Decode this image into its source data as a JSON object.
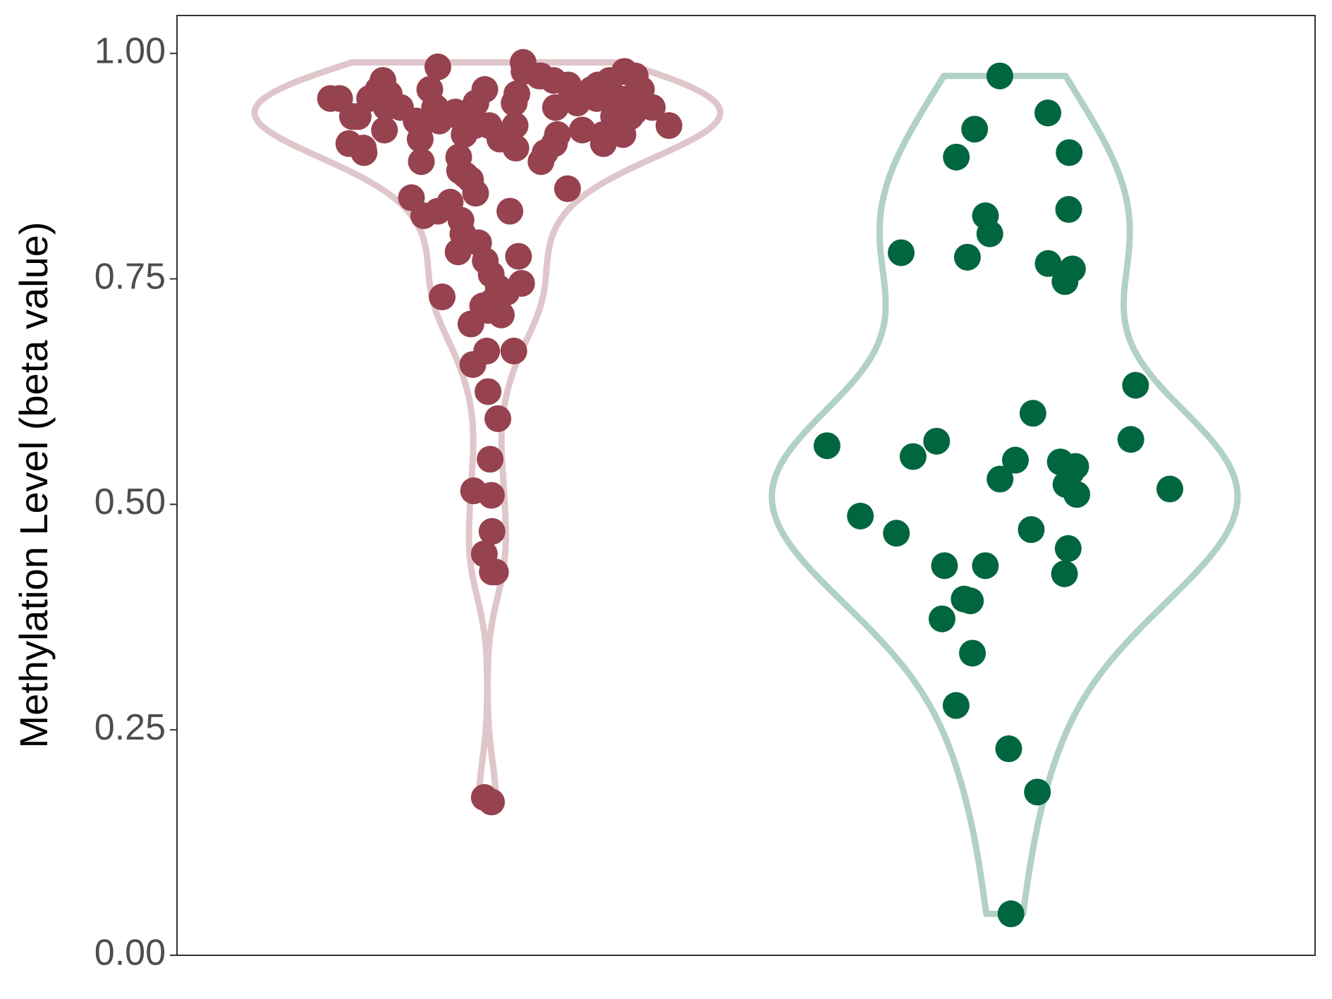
{
  "chart_data": {
    "type": "violin",
    "y_label": "Methylation Level (beta value)",
    "series": [
      {
        "color": "#96424f",
        "values": [
          0.99,
          0.985,
          0.98,
          0.98,
          0.975,
          0.975,
          0.97,
          0.97,
          0.97,
          0.965,
          0.965,
          0.96,
          0.96,
          0.96,
          0.955,
          0.955,
          0.955,
          0.95,
          0.95,
          0.95,
          0.95,
          0.945,
          0.945,
          0.94,
          0.94,
          0.94,
          0.94,
          0.935,
          0.935,
          0.93,
          0.93,
          0.93,
          0.93,
          0.925,
          0.925,
          0.92,
          0.92,
          0.92,
          0.915,
          0.915,
          0.91,
          0.91,
          0.91,
          0.905,
          0.905,
          0.9,
          0.9,
          0.895,
          0.895,
          0.89,
          0.89,
          0.885,
          0.88,
          0.88,
          0.87,
          0.865,
          0.86,
          0.85,
          0.845,
          0.84,
          0.835,
          0.825,
          0.825,
          0.82,
          0.815,
          0.8,
          0.79,
          0.78,
          0.775,
          0.77,
          0.755,
          0.745,
          0.74,
          0.735,
          0.73,
          0.725,
          0.72,
          0.715,
          0.71,
          0.7,
          0.67,
          0.67,
          0.655,
          0.625,
          0.595,
          0.55,
          0.515,
          0.51,
          0.47,
          0.445,
          0.425,
          0.425,
          0.175,
          0.17,
          0.975,
          0.96,
          0.95,
          0.945,
          0.94,
          0.93,
          0.92,
          0.91,
          0.9,
          0.96,
          0.95,
          0.94
        ]
      },
      {
        "color": "#006640",
        "values": [
          0.975,
          0.934,
          0.916,
          0.89,
          0.885,
          0.827,
          0.82,
          0.8,
          0.779,
          0.774,
          0.767,
          0.761,
          0.747,
          0.632,
          0.601,
          0.572,
          0.57,
          0.565,
          0.553,
          0.549,
          0.547,
          0.542,
          0.536,
          0.528,
          0.522,
          0.517,
          0.511,
          0.487,
          0.472,
          0.468,
          0.451,
          0.432,
          0.432,
          0.423,
          0.395,
          0.393,
          0.373,
          0.335,
          0.277,
          0.229,
          0.181,
          0.046
        ]
      }
    ],
    "ylim": [
      0,
      1.042
    ],
    "yticks": [
      {
        "value": 0,
        "label": "0.00"
      },
      {
        "value": 0.25,
        "label": "0.25"
      },
      {
        "value": 0.5,
        "label": "0.50"
      },
      {
        "value": 0.75,
        "label": "0.75"
      },
      {
        "value": 1,
        "label": "1.00"
      }
    ]
  }
}
